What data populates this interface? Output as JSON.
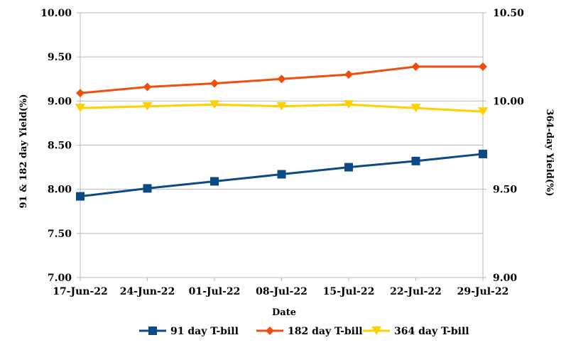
{
  "chart_data": {
    "type": "line",
    "categories": [
      "17-Jun-22",
      "24-Jun-22",
      "01-Jul-22",
      "08-Jul-22",
      "15-Jul-22",
      "22-Jul-22",
      "29-Jul-22"
    ],
    "xlabel": "Date",
    "ylabel_left": "91 & 182 day Yield(%)",
    "ylabel_right": "364-day Yield(%)",
    "ylim_left": [
      7.0,
      10.0
    ],
    "ylim_right": [
      9.0,
      10.5
    ],
    "yticks_left": [
      "7.00",
      "7.50",
      "8.00",
      "8.50",
      "9.00",
      "9.50",
      "10.00"
    ],
    "yticks_right": [
      "9.00",
      "9.50",
      "10.00",
      "10.50"
    ],
    "grid": "horizontal",
    "legend_position": "bottom",
    "series": [
      {
        "name": "91 day T-bill",
        "axis": "left",
        "color": "#0b4a86",
        "marker": "square",
        "values": [
          7.92,
          8.01,
          8.09,
          8.17,
          8.25,
          8.32,
          8.4
        ]
      },
      {
        "name": "182 day T-bill",
        "axis": "left",
        "color": "#f04e0f",
        "marker": "diamond",
        "values": [
          9.09,
          9.16,
          9.2,
          9.25,
          9.3,
          9.39,
          9.39
        ]
      },
      {
        "name": "364 day T-bill",
        "axis": "right",
        "color": "#ffd000",
        "marker": "triangle-down",
        "values": [
          9.96,
          9.97,
          9.98,
          9.97,
          9.98,
          9.96,
          9.94
        ]
      }
    ]
  }
}
